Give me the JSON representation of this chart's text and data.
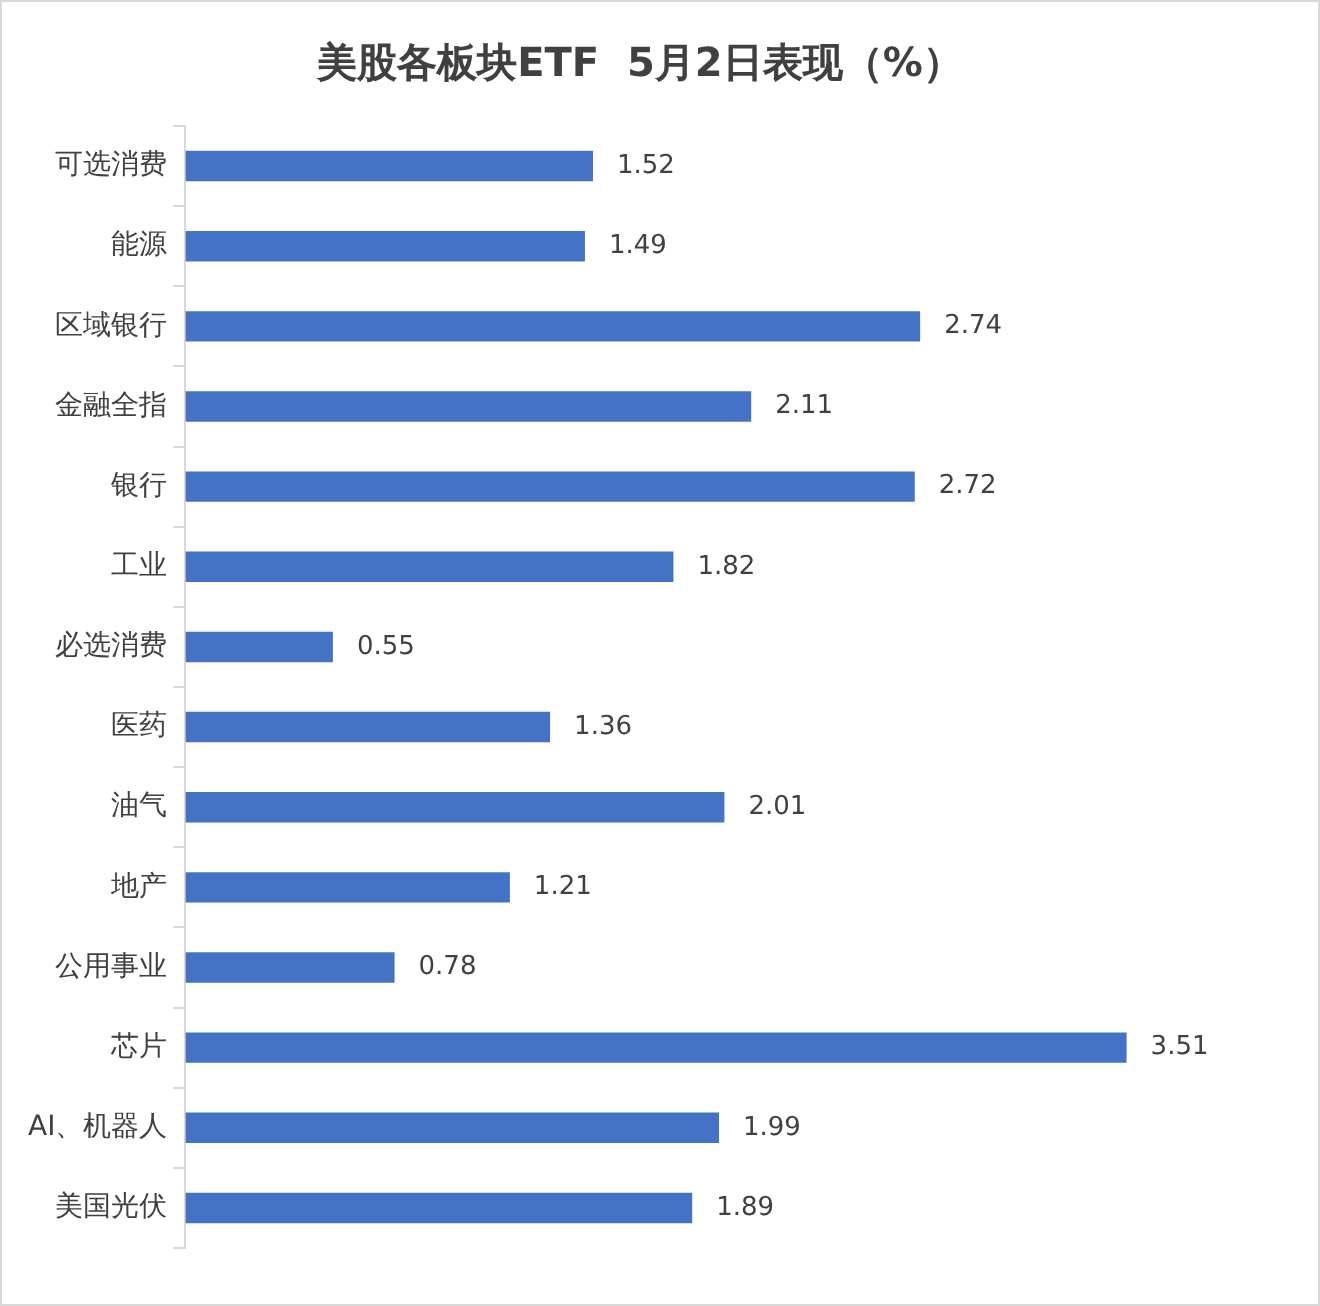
{
  "chart_data": {
    "type": "bar",
    "orientation": "horizontal",
    "title": "美股各板块ETF  5月2日表现（%）",
    "categories": [
      "可选消费",
      "能源",
      "区域银行",
      "金融全指",
      "银行",
      "工业",
      "必选消费",
      "医药",
      "油气",
      "地产",
      "公用事业",
      "芯片",
      "AI、机器人",
      "美国光伏"
    ],
    "values": [
      1.52,
      1.49,
      2.74,
      2.11,
      2.72,
      1.82,
      0.55,
      1.36,
      2.01,
      1.21,
      0.78,
      3.51,
      1.99,
      1.89
    ],
    "color": "#4472c4",
    "data_labels": true,
    "grid": false,
    "legend": false
  }
}
